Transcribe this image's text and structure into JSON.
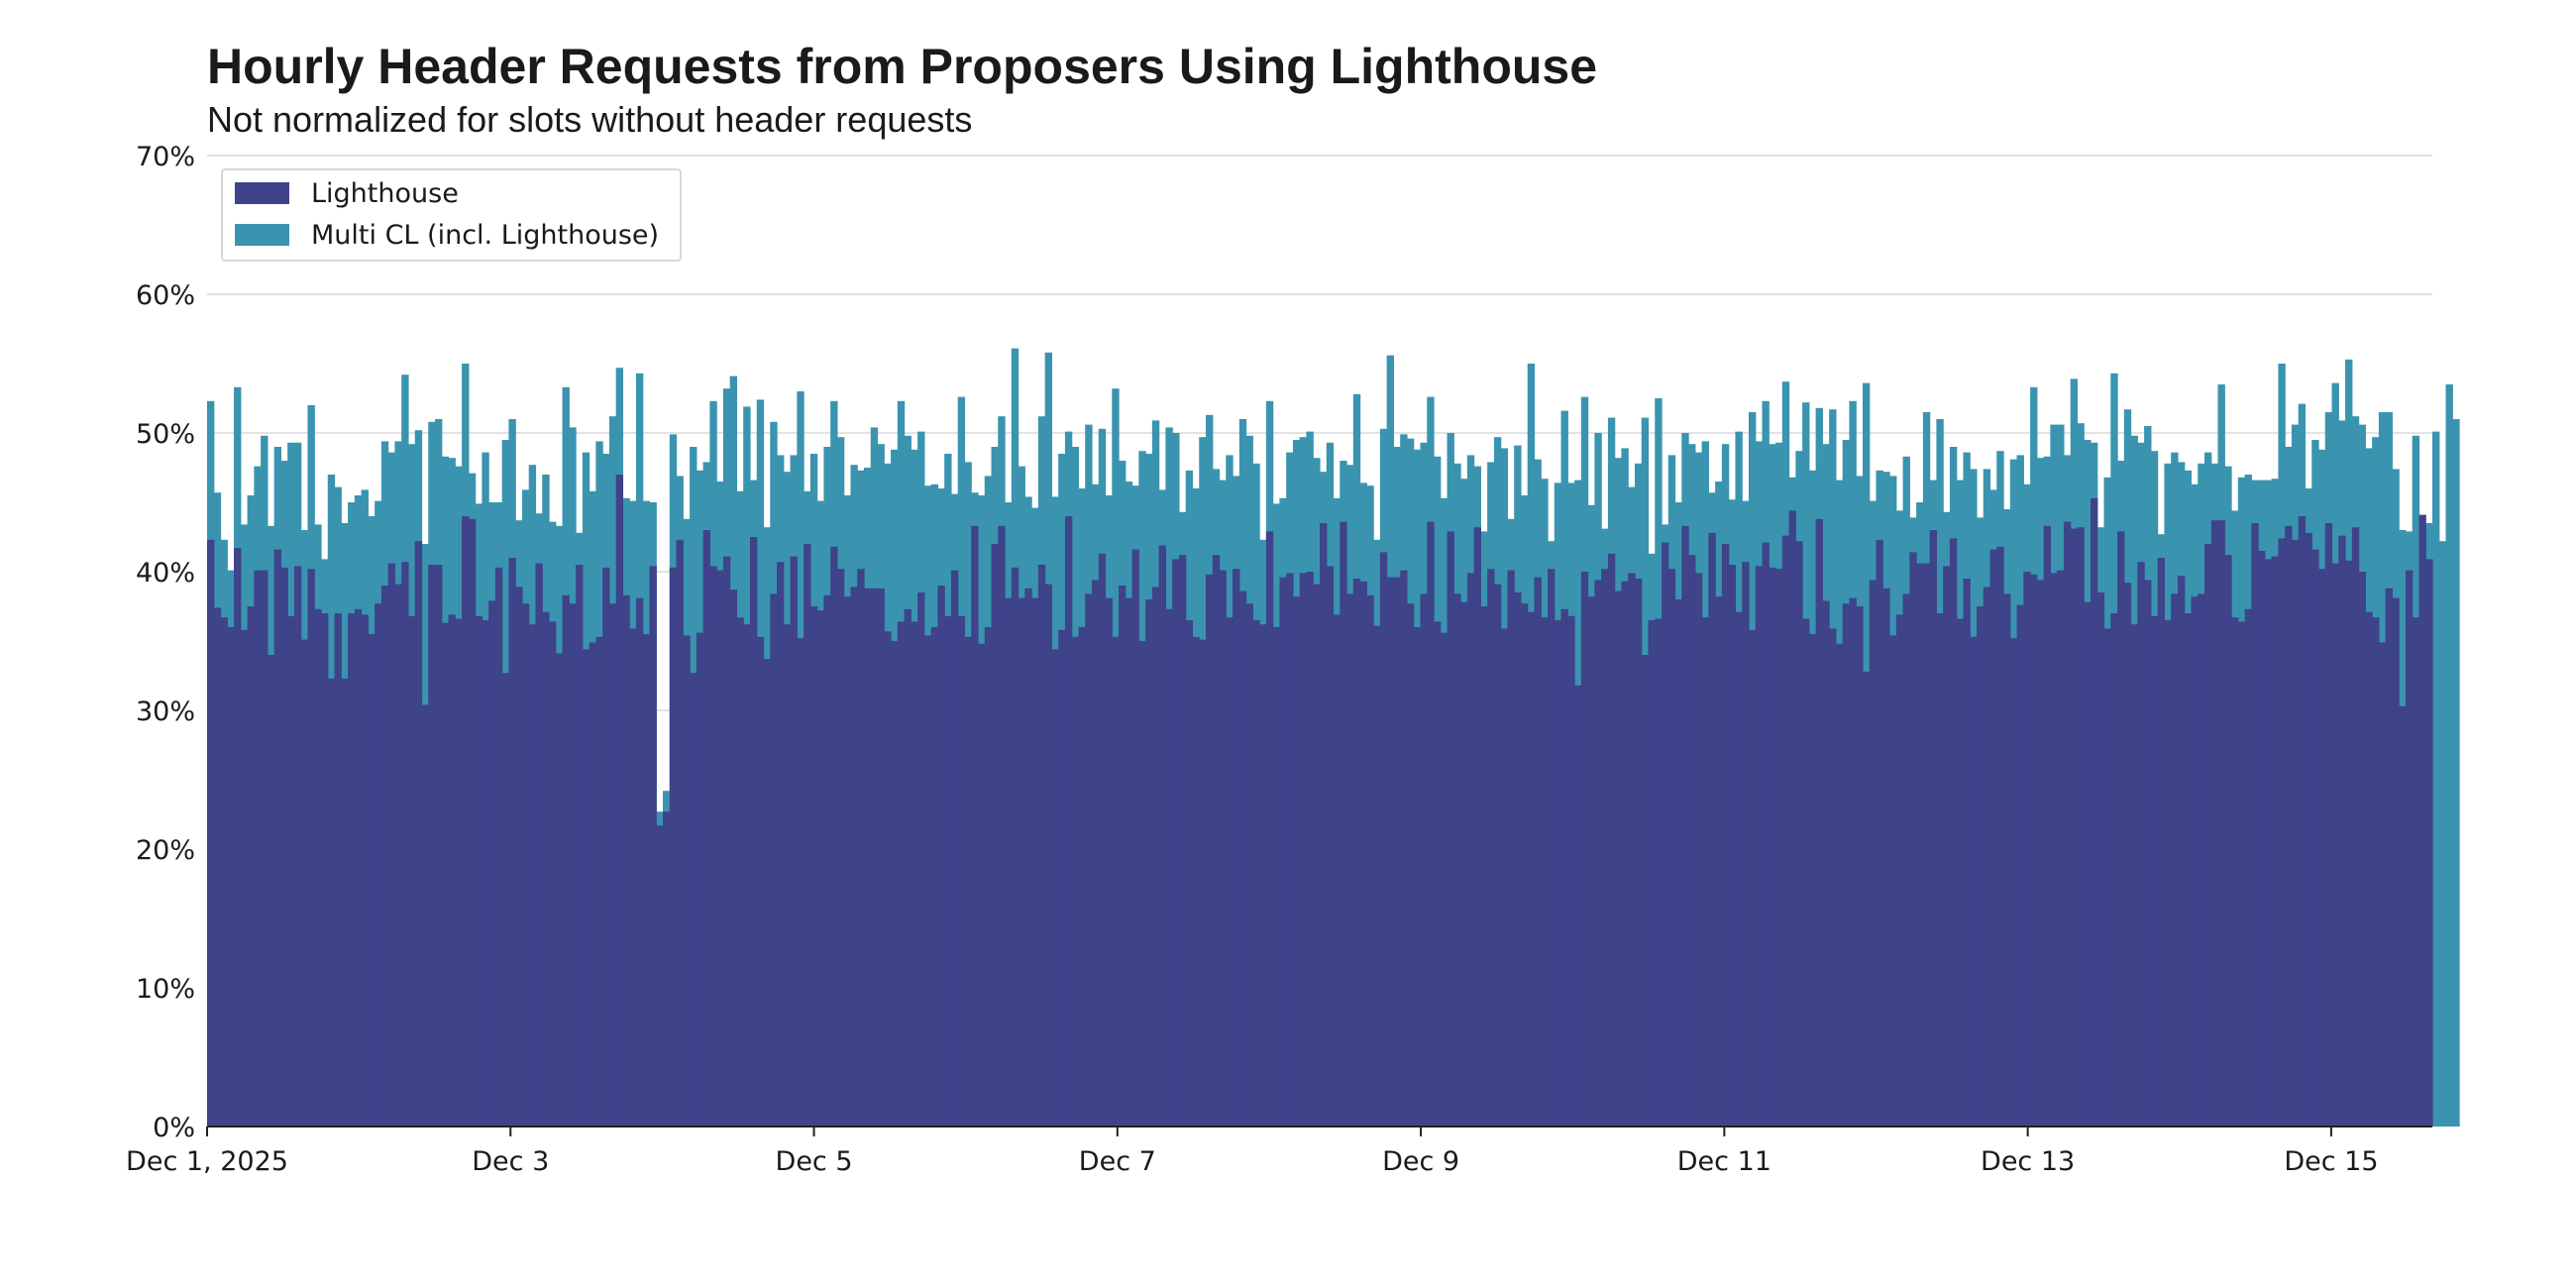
{
  "chart_data": {
    "type": "bar",
    "stacking": "overlay",
    "title": "Hourly Header Requests from Proposers Using Lighthouse",
    "subtitle": "Not normalized for slots without header requests",
    "xlabel": "",
    "ylabel": "",
    "bar_interval": "1 hour",
    "x_start": "Dec 1, 2025 00:00",
    "x_range_hours": [
      0,
      352
    ],
    "ylim": [
      0,
      70
    ],
    "y_ticks": [
      0,
      10,
      20,
      30,
      40,
      50,
      60,
      70
    ],
    "y_tick_labels": [
      "0%",
      "10%",
      "20%",
      "30%",
      "40%",
      "50%",
      "60%",
      "70%"
    ],
    "x_ticks_hours": [
      0,
      48,
      96,
      144,
      192,
      240,
      288,
      336
    ],
    "x_tick_labels": [
      "Dec 1, 2025",
      "Dec 3",
      "Dec 5",
      "Dec 7",
      "Dec 9",
      "Dec 11",
      "Dec 13",
      "Dec 15"
    ],
    "grid": "horizontal",
    "legend_position": "top-left",
    "series": [
      {
        "name": "Lighthouse",
        "color": "#3f438a",
        "values": [
          42.3,
          37.4,
          36.7,
          36.0,
          41.7,
          35.8,
          37.5,
          40.1,
          40.1,
          34.0,
          41.6,
          40.3,
          36.8,
          40.4,
          35.1,
          40.2,
          37.3,
          37.0,
          32.3,
          37.0,
          32.3,
          37.0,
          37.3,
          36.9,
          35.5,
          37.7,
          39.0,
          40.6,
          39.1,
          40.7,
          36.8,
          42.2,
          30.4,
          40.5,
          40.5,
          36.3,
          36.9,
          36.6,
          44.0,
          43.8,
          36.8,
          36.5,
          37.9,
          40.3,
          32.7,
          41.0,
          38.9,
          37.7,
          36.2,
          40.6,
          37.1,
          36.4,
          34.1,
          38.3,
          37.7,
          40.5,
          34.4,
          34.9,
          35.3,
          40.3,
          37.7,
          47.0,
          38.3,
          35.9,
          38.1,
          35.5,
          40.4,
          21.7,
          22.7,
          40.3,
          42.3,
          35.4,
          32.7,
          35.6,
          43.0,
          40.4,
          40.1,
          41.1,
          38.7,
          36.7,
          36.2,
          42.5,
          35.3,
          33.7,
          38.4,
          40.7,
          36.2,
          41.1,
          35.2,
          42.0,
          37.5,
          37.2,
          38.3,
          41.8,
          40.2,
          38.2,
          38.9,
          40.2,
          38.8,
          38.8,
          38.8,
          35.7,
          35.0,
          36.4,
          37.3,
          36.4,
          38.5,
          35.4,
          36.0,
          39.0,
          36.8,
          40.1,
          36.8,
          35.3,
          43.3,
          34.8,
          36.0,
          42.0,
          43.3,
          38.1,
          40.3,
          38.1,
          38.8,
          38.1,
          40.5,
          39.1,
          34.4,
          35.8,
          44.0,
          35.3,
          36.0,
          38.4,
          39.4,
          41.3,
          38.1,
          35.3,
          39.0,
          38.1,
          41.6,
          35.0,
          38.0,
          38.9,
          41.9,
          37.3,
          40.9,
          41.2,
          36.5,
          35.3,
          35.1,
          39.8,
          41.2,
          40.1,
          36.7,
          40.2,
          38.6,
          37.7,
          36.5,
          36.2,
          42.9,
          36.0,
          39.6,
          39.9,
          38.2,
          39.9,
          40.0,
          39.1,
          43.5,
          40.4,
          36.9,
          43.6,
          38.4,
          39.5,
          39.3,
          38.3,
          36.1,
          41.4,
          39.6,
          39.6,
          40.1,
          37.7,
          36.0,
          38.4,
          43.6,
          36.4,
          35.6,
          42.9,
          38.4,
          37.8,
          39.9,
          43.2,
          37.5,
          40.2,
          39.1,
          35.9,
          40.1,
          38.5,
          37.7,
          37.1,
          39.6,
          36.7,
          40.2,
          36.5,
          37.3,
          36.8,
          31.8,
          40.0,
          38.2,
          39.4,
          40.2,
          41.3,
          38.6,
          39.3,
          39.9,
          39.5,
          34.0,
          36.5,
          36.6,
          42.1,
          40.2,
          38.0,
          43.3,
          41.2,
          39.9,
          36.7,
          42.8,
          38.2,
          42.0,
          40.5,
          37.1,
          40.7,
          35.8,
          40.4,
          42.1,
          40.3,
          40.2,
          42.6,
          44.4,
          42.2,
          36.6,
          35.5,
          43.8,
          37.9,
          35.9,
          34.8,
          37.7,
          38.1,
          37.5,
          32.8,
          39.4,
          42.3,
          38.8,
          35.4,
          36.9,
          38.4,
          41.4,
          40.6,
          40.6,
          43.0,
          37.0,
          40.4,
          42.4,
          36.6,
          39.5,
          35.3,
          37.5,
          38.9,
          41.6,
          41.8,
          38.4,
          35.2,
          37.6,
          40.0,
          39.8,
          39.4,
          43.3,
          39.9,
          40.1,
          43.6,
          43.1,
          43.2,
          37.8,
          45.3,
          38.5,
          35.9,
          37.0,
          42.9,
          39.2,
          36.2,
          40.7,
          39.4,
          36.8,
          41.0,
          36.5,
          38.4,
          39.7,
          37.0,
          38.2,
          38.4,
          42.0,
          43.7,
          43.7,
          41.2,
          36.7,
          36.4,
          37.3,
          43.5,
          41.5,
          40.9,
          41.1,
          42.4,
          43.3,
          42.3,
          44.0,
          42.8,
          41.6,
          40.2,
          43.5,
          40.6,
          42.6,
          40.8,
          43.2,
          40.0,
          37.1,
          36.7,
          34.9,
          38.8,
          38.1,
          30.3,
          40.1,
          36.7,
          44.1,
          40.9
        ]
      },
      {
        "name": "Multi CL (incl. Lighthouse)",
        "color": "#3a94b0",
        "values": [
          52.3,
          45.7,
          42.3,
          40.1,
          53.3,
          43.4,
          45.5,
          47.6,
          49.8,
          43.3,
          49.0,
          48.0,
          49.3,
          49.3,
          43.0,
          52.0,
          43.4,
          40.9,
          47.0,
          46.1,
          43.5,
          45.0,
          45.5,
          45.9,
          44.0,
          45.1,
          49.4,
          48.6,
          49.4,
          54.2,
          49.2,
          50.2,
          42.0,
          50.8,
          51.0,
          48.3,
          48.2,
          47.6,
          55.0,
          47.1,
          44.9,
          48.6,
          45.0,
          45.0,
          49.5,
          51.0,
          43.7,
          45.9,
          47.7,
          44.2,
          47.0,
          43.6,
          43.3,
          53.3,
          50.4,
          42.8,
          48.6,
          45.8,
          49.4,
          48.5,
          51.2,
          54.7,
          45.3,
          45.1,
          54.3,
          45.1,
          45.0,
          22.7,
          24.2,
          49.9,
          46.9,
          43.8,
          49.0,
          47.3,
          47.9,
          52.3,
          46.5,
          53.2,
          54.1,
          45.8,
          51.9,
          46.6,
          52.4,
          43.2,
          50.8,
          48.4,
          47.2,
          48.4,
          53.0,
          45.8,
          48.5,
          45.1,
          49.0,
          52.3,
          49.7,
          45.5,
          47.7,
          47.3,
          47.5,
          50.4,
          49.2,
          47.8,
          48.8,
          52.3,
          49.8,
          48.8,
          50.1,
          46.2,
          46.3,
          46.0,
          48.5,
          45.6,
          52.6,
          47.9,
          45.7,
          45.5,
          46.9,
          49.0,
          51.2,
          45.0,
          56.1,
          47.6,
          45.4,
          44.6,
          51.2,
          55.8,
          45.4,
          48.5,
          50.1,
          49.0,
          46.0,
          50.6,
          46.3,
          50.3,
          45.5,
          53.2,
          48.0,
          46.5,
          46.2,
          48.7,
          48.5,
          50.9,
          45.9,
          50.4,
          50.0,
          44.3,
          47.3,
          46.0,
          49.7,
          51.3,
          47.4,
          46.6,
          48.4,
          46.9,
          51.0,
          49.8,
          47.8,
          42.3,
          52.3,
          44.9,
          45.3,
          48.6,
          49.5,
          49.7,
          50.1,
          48.2,
          47.2,
          49.3,
          45.3,
          48.0,
          47.7,
          52.8,
          46.4,
          46.2,
          42.3,
          50.3,
          55.6,
          49.0,
          49.9,
          49.6,
          48.8,
          49.3,
          52.6,
          48.3,
          45.3,
          50.0,
          47.8,
          46.7,
          48.4,
          47.6,
          42.9,
          47.9,
          49.7,
          48.9,
          43.8,
          49.1,
          45.5,
          55.0,
          48.1,
          46.7,
          42.2,
          46.4,
          51.6,
          46.4,
          46.6,
          52.6,
          44.8,
          50.0,
          43.1,
          51.1,
          48.2,
          48.9,
          46.1,
          47.8,
          51.1,
          41.3,
          52.5,
          43.4,
          48.4,
          45.0,
          50.0,
          49.2,
          48.6,
          49.4,
          45.7,
          46.5,
          49.2,
          45.2,
          50.1,
          45.1,
          51.5,
          49.4,
          52.3,
          49.2,
          49.3,
          53.7,
          46.8,
          48.7,
          52.2,
          47.3,
          51.8,
          49.2,
          51.7,
          46.6,
          49.5,
          52.3,
          46.9,
          53.6,
          45.1,
          47.3,
          47.2,
          46.9,
          44.4,
          48.3,
          43.9,
          45.0,
          51.5,
          46.6,
          51.0,
          44.3,
          49.0,
          46.6,
          48.6,
          47.4,
          43.9,
          47.4,
          45.9,
          48.7,
          44.5,
          48.1,
          48.4,
          46.3,
          53.3,
          48.2,
          48.3,
          50.6,
          50.6,
          48.4,
          53.9,
          50.7,
          49.5,
          49.3,
          43.2,
          46.8,
          54.3,
          48.0,
          51.7,
          49.8,
          49.3,
          50.5,
          48.7,
          42.7,
          47.8,
          48.6,
          47.9,
          47.3,
          46.3,
          47.8,
          48.6,
          47.8,
          53.5,
          47.6,
          44.4,
          46.8,
          47.0,
          46.6,
          46.6,
          46.6,
          46.7,
          55.0,
          49.0,
          50.6,
          52.1,
          46.0,
          49.5,
          48.8,
          51.5,
          53.6,
          50.9,
          55.3,
          51.2,
          50.6,
          48.9,
          49.7,
          51.5,
          51.5,
          47.4,
          43.0,
          42.9,
          49.8,
          43.0,
          43.5,
          50.1,
          42.2,
          53.5,
          51.0
        ]
      }
    ],
    "background": "#ffffff",
    "grid_color": "#d8d8d8",
    "text_color": "#1a1a1a"
  }
}
